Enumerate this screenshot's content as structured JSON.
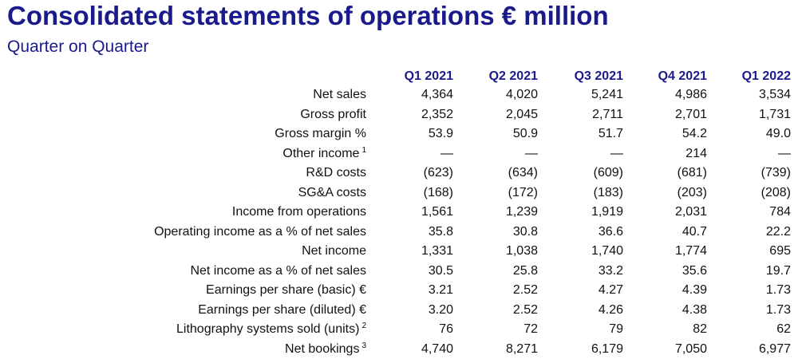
{
  "title": "Consolidated statements of operations € million",
  "subtitle": "Quarter on Quarter",
  "columns": [
    "Q1 2021",
    "Q2 2021",
    "Q3 2021",
    "Q4 2021",
    "Q1 2022"
  ],
  "rows": [
    {
      "label": "Net sales",
      "note": "",
      "values": [
        "4,364",
        "4,020",
        "5,241",
        "4,986",
        "3,534"
      ]
    },
    {
      "label": "Gross profit",
      "note": "",
      "values": [
        "2,352",
        "2,045",
        "2,711",
        "2,701",
        "1,731"
      ]
    },
    {
      "label": "Gross margin %",
      "note": "",
      "values": [
        "53.9",
        "50.9",
        "51.7",
        "54.2",
        "49.0"
      ]
    },
    {
      "label": "Other income",
      "note": "1",
      "values": [
        "—",
        "—",
        "—",
        "214",
        "—"
      ]
    },
    {
      "label": "R&D costs",
      "note": "",
      "values": [
        "(623)",
        "(634)",
        "(609)",
        "(681)",
        "(739)"
      ]
    },
    {
      "label": "SG&A costs",
      "note": "",
      "values": [
        "(168)",
        "(172)",
        "(183)",
        "(203)",
        "(208)"
      ]
    },
    {
      "label": "Income from operations",
      "note": "",
      "values": [
        "1,561",
        "1,239",
        "1,919",
        "2,031",
        "784"
      ]
    },
    {
      "label": "Operating income as a % of net sales",
      "note": "",
      "values": [
        "35.8",
        "30.8",
        "36.6",
        "40.7",
        "22.2"
      ]
    },
    {
      "label": "Net income",
      "note": "",
      "values": [
        "1,331",
        "1,038",
        "1,740",
        "1,774",
        "695"
      ]
    },
    {
      "label": "Net income as a % of net sales",
      "note": "",
      "values": [
        "30.5",
        "25.8",
        "33.2",
        "35.6",
        "19.7"
      ]
    },
    {
      "label": "Earnings per share (basic) €",
      "note": "",
      "values": [
        "3.21",
        "2.52",
        "4.27",
        "4.39",
        "1.73"
      ]
    },
    {
      "label": "Earnings per share (diluted) €",
      "note": "",
      "values": [
        "3.20",
        "2.52",
        "4.26",
        "4.38",
        "1.73"
      ]
    },
    {
      "label": "Lithography systems sold (units)",
      "note": "2",
      "values": [
        "76",
        "72",
        "79",
        "82",
        "62"
      ]
    },
    {
      "label": "Net bookings",
      "note": "3",
      "values": [
        "4,740",
        "8,271",
        "6,179",
        "7,050",
        "6,977"
      ]
    }
  ]
}
